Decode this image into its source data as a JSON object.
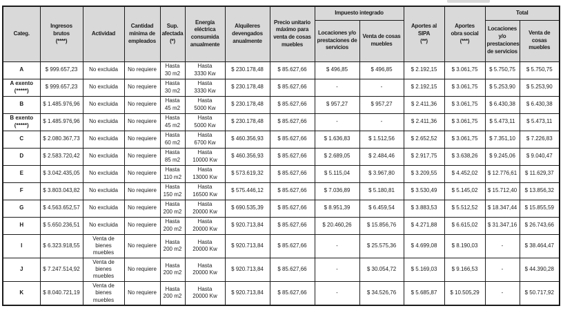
{
  "colors": {
    "header_bg": "#d9d9d9",
    "border": "#1a1a1a",
    "text": "#1a1a1a",
    "page_bg": "#ffffff"
  },
  "table": {
    "group_headers": {
      "impuesto_integrado": "Impuesto integrado",
      "total": "Total"
    },
    "column_headers": {
      "categ": "Categ.",
      "ingresos": "Ingresos brutos\n(****)",
      "actividad": "Actividad",
      "empleados": "Cantidad\nmínima de\nempleados",
      "sup": "Sup.\nafectada\n(*)",
      "energia": "Energía\neléctrica\nconsumida\nanualmente",
      "alquileres": "Alquileres\ndevengados\nanualmente",
      "precio": "Precio unitario\nmáximo para\nventa de cosas\nmuebles",
      "imp_loc": "Locaciones y/o\nprestaciones de\nservicios",
      "imp_venta": "Venta de cosas\nmuebles",
      "sipa": "Aportes al\nSIPA\n(**)",
      "obra_social": "Aportes\nobra social\n(***)",
      "tot_loc": "Locaciones\ny/o\nprestaciones\nde servicios",
      "tot_venta": "Venta de cosas\nmuebles"
    },
    "rows": [
      {
        "categ": "A",
        "ingresos": "$ 999.657,23",
        "actividad": "No excluida",
        "empleados": "No requiere",
        "sup": "Hasta\n30 m2",
        "energia": "Hasta\n3330 Kw",
        "alquileres": "$ 230.178,48",
        "precio": "$ 85.627,66",
        "imp_loc": "$ 496,85",
        "imp_venta": "$ 496,85",
        "sipa": "$ 2.192,15",
        "obra_social": "$ 3.061,75",
        "tot_loc": "$ 5.750,75",
        "tot_venta": "$ 5.750,75"
      },
      {
        "categ": "A exento\n(*****)",
        "ingresos": "$ 999.657,23",
        "actividad": "No excluida",
        "empleados": "No requiere",
        "sup": "Hasta\n30 m2",
        "energia": "Hasta\n3330 Kw",
        "alquileres": "$ 230.178,48",
        "precio": "$ 85.627,66",
        "imp_loc": "-",
        "imp_venta": "-",
        "sipa": "$ 2.192,15",
        "obra_social": "$ 3.061,75",
        "tot_loc": "$ 5.253,90",
        "tot_venta": "$ 5.253,90"
      },
      {
        "categ": "B",
        "ingresos": "$ 1.485.976,96",
        "actividad": "No excluida",
        "empleados": "No requiere",
        "sup": "Hasta\n45 m2",
        "energia": "Hasta\n5000 Kw",
        "alquileres": "$ 230.178,48",
        "precio": "$ 85.627,66",
        "imp_loc": "$ 957,27",
        "imp_venta": "$ 957,27",
        "sipa": "$ 2.411,36",
        "obra_social": "$ 3.061,75",
        "tot_loc": "$ 6.430,38",
        "tot_venta": "$ 6.430,38"
      },
      {
        "categ": "B exento\n(*****)",
        "ingresos": "$ 1.485.976,96",
        "actividad": "No excluida",
        "empleados": "No requiere",
        "sup": "Hasta\n45 m2",
        "energia": "Hasta\n5000 Kw",
        "alquileres": "$ 230.178,48",
        "precio": "$ 85.627,66",
        "imp_loc": "-",
        "imp_venta": "-",
        "sipa": "$ 2.411,36",
        "obra_social": "$ 3.061,75",
        "tot_loc": "$ 5.473,11",
        "tot_venta": "$ 5.473,11"
      },
      {
        "categ": "C",
        "ingresos": "$ 2.080.367,73",
        "actividad": "No excluida",
        "empleados": "No requiere",
        "sup": "Hasta\n60 m2",
        "energia": "Hasta\n6700 Kw",
        "alquileres": "$ 460.356,93",
        "precio": "$ 85.627,66",
        "imp_loc": "$ 1.636,83",
        "imp_venta": "$ 1.512,56",
        "sipa": "$ 2.652,52",
        "obra_social": "$ 3.061,75",
        "tot_loc": "$ 7.351,10",
        "tot_venta": "$ 7.226,83"
      },
      {
        "categ": "D",
        "ingresos": "$ 2.583.720,42",
        "actividad": "No excluida",
        "empleados": "No requiere",
        "sup": "Hasta\n85 m2",
        "energia": "Hasta\n10000 Kw",
        "alquileres": "$ 460.356,93",
        "precio": "$ 85.627,66",
        "imp_loc": "$ 2.689,05",
        "imp_venta": "$ 2.484,46",
        "sipa": "$ 2.917,75",
        "obra_social": "$ 3.638,26",
        "tot_loc": "$ 9.245,06",
        "tot_venta": "$ 9.040,47"
      },
      {
        "categ": "E",
        "ingresos": "$ 3.042.435,05",
        "actividad": "No excluida",
        "empleados": "No requiere",
        "sup": "Hasta\n110 m2",
        "energia": "Hasta\n13000 Kw",
        "alquileres": "$ 573.619,32",
        "precio": "$ 85.627,66",
        "imp_loc": "$ 5.115,04",
        "imp_venta": "$ 3.967,80",
        "sipa": "$ 3.209,55",
        "obra_social": "$ 4.452,02",
        "tot_loc": "$ 12.776,61",
        "tot_venta": "$ 11.629,37"
      },
      {
        "categ": "F",
        "ingresos": "$ 3.803.043,82",
        "actividad": "No excluida",
        "empleados": "No requiere",
        "sup": "Hasta\n150 m2",
        "energia": "Hasta\n16500 Kw",
        "alquileres": "$ 575.446,12",
        "precio": "$ 85.627,66",
        "imp_loc": "$ 7.036,89",
        "imp_venta": "$ 5.180,81",
        "sipa": "$ 3.530,49",
        "obra_social": "$ 5.145,02",
        "tot_loc": "$ 15.712,40",
        "tot_venta": "$ 13.856,32"
      },
      {
        "categ": "G",
        "ingresos": "$ 4.563.652,57",
        "actividad": "No excluida",
        "empleados": "No requiere",
        "sup": "Hasta\n200 m2",
        "energia": "Hasta\n20000 Kw",
        "alquileres": "$ 690.535,39",
        "precio": "$ 85.627,66",
        "imp_loc": "$ 8.951,39",
        "imp_venta": "$ 6.459,54",
        "sipa": "$ 3.883,53",
        "obra_social": "$ 5.512,52",
        "tot_loc": "$ 18.347,44",
        "tot_venta": "$ 15.855,59"
      },
      {
        "categ": "H",
        "ingresos": "$ 5.650.236,51",
        "actividad": "No excluida",
        "empleados": "No requiere",
        "sup": "Hasta\n200 m2",
        "energia": "Hasta\n20000 Kw",
        "alquileres": "$ 920.713,84",
        "precio": "$ 85.627,66",
        "imp_loc": "$ 20.460,26",
        "imp_venta": "$ 15.856,76",
        "sipa": "$ 4.271,88",
        "obra_social": "$ 6.615,02",
        "tot_loc": "$ 31.347,16",
        "tot_venta": "$ 26.743,66"
      },
      {
        "categ": "I",
        "ingresos": "$ 6.323.918,55",
        "actividad": "Venta de\nbienes\nmuebles",
        "empleados": "No requiere",
        "sup": "Hasta\n200 m2",
        "energia": "Hasta\n20000 Kw",
        "alquileres": "$ 920.713,84",
        "precio": "$ 85.627,66",
        "imp_loc": "-",
        "imp_venta": "$ 25.575,36",
        "sipa": "$ 4.699,08",
        "obra_social": "$ 8.190,03",
        "tot_loc": "-",
        "tot_venta": "$ 38.464,47"
      },
      {
        "categ": "J",
        "ingresos": "$ 7.247.514,92",
        "actividad": "Venta de\nbienes\nmuebles",
        "empleados": "No requiere",
        "sup": "Hasta\n200 m2",
        "energia": "Hasta\n20000 Kw",
        "alquileres": "$ 920.713,84",
        "precio": "$ 85.627,66",
        "imp_loc": "-",
        "imp_venta": "$ 30.054,72",
        "sipa": "$ 5.169,03",
        "obra_social": "$ 9.166,53",
        "tot_loc": "-",
        "tot_venta": "$ 44.390,28"
      },
      {
        "categ": "K",
        "ingresos": "$ 8.040.721,19",
        "actividad": "Venta de\nbienes\nmuebles",
        "empleados": "No requiere",
        "sup": "Hasta\n200 m2",
        "energia": "Hasta\n20000 Kw",
        "alquileres": "$ 920.713,84",
        "precio": "$ 85.627,66",
        "imp_loc": "-",
        "imp_venta": "$ 34.526,76",
        "sipa": "$ 5.685,87",
        "obra_social": "$ 10.505,29",
        "tot_loc": "-",
        "tot_venta": "$ 50.717,92"
      }
    ]
  }
}
